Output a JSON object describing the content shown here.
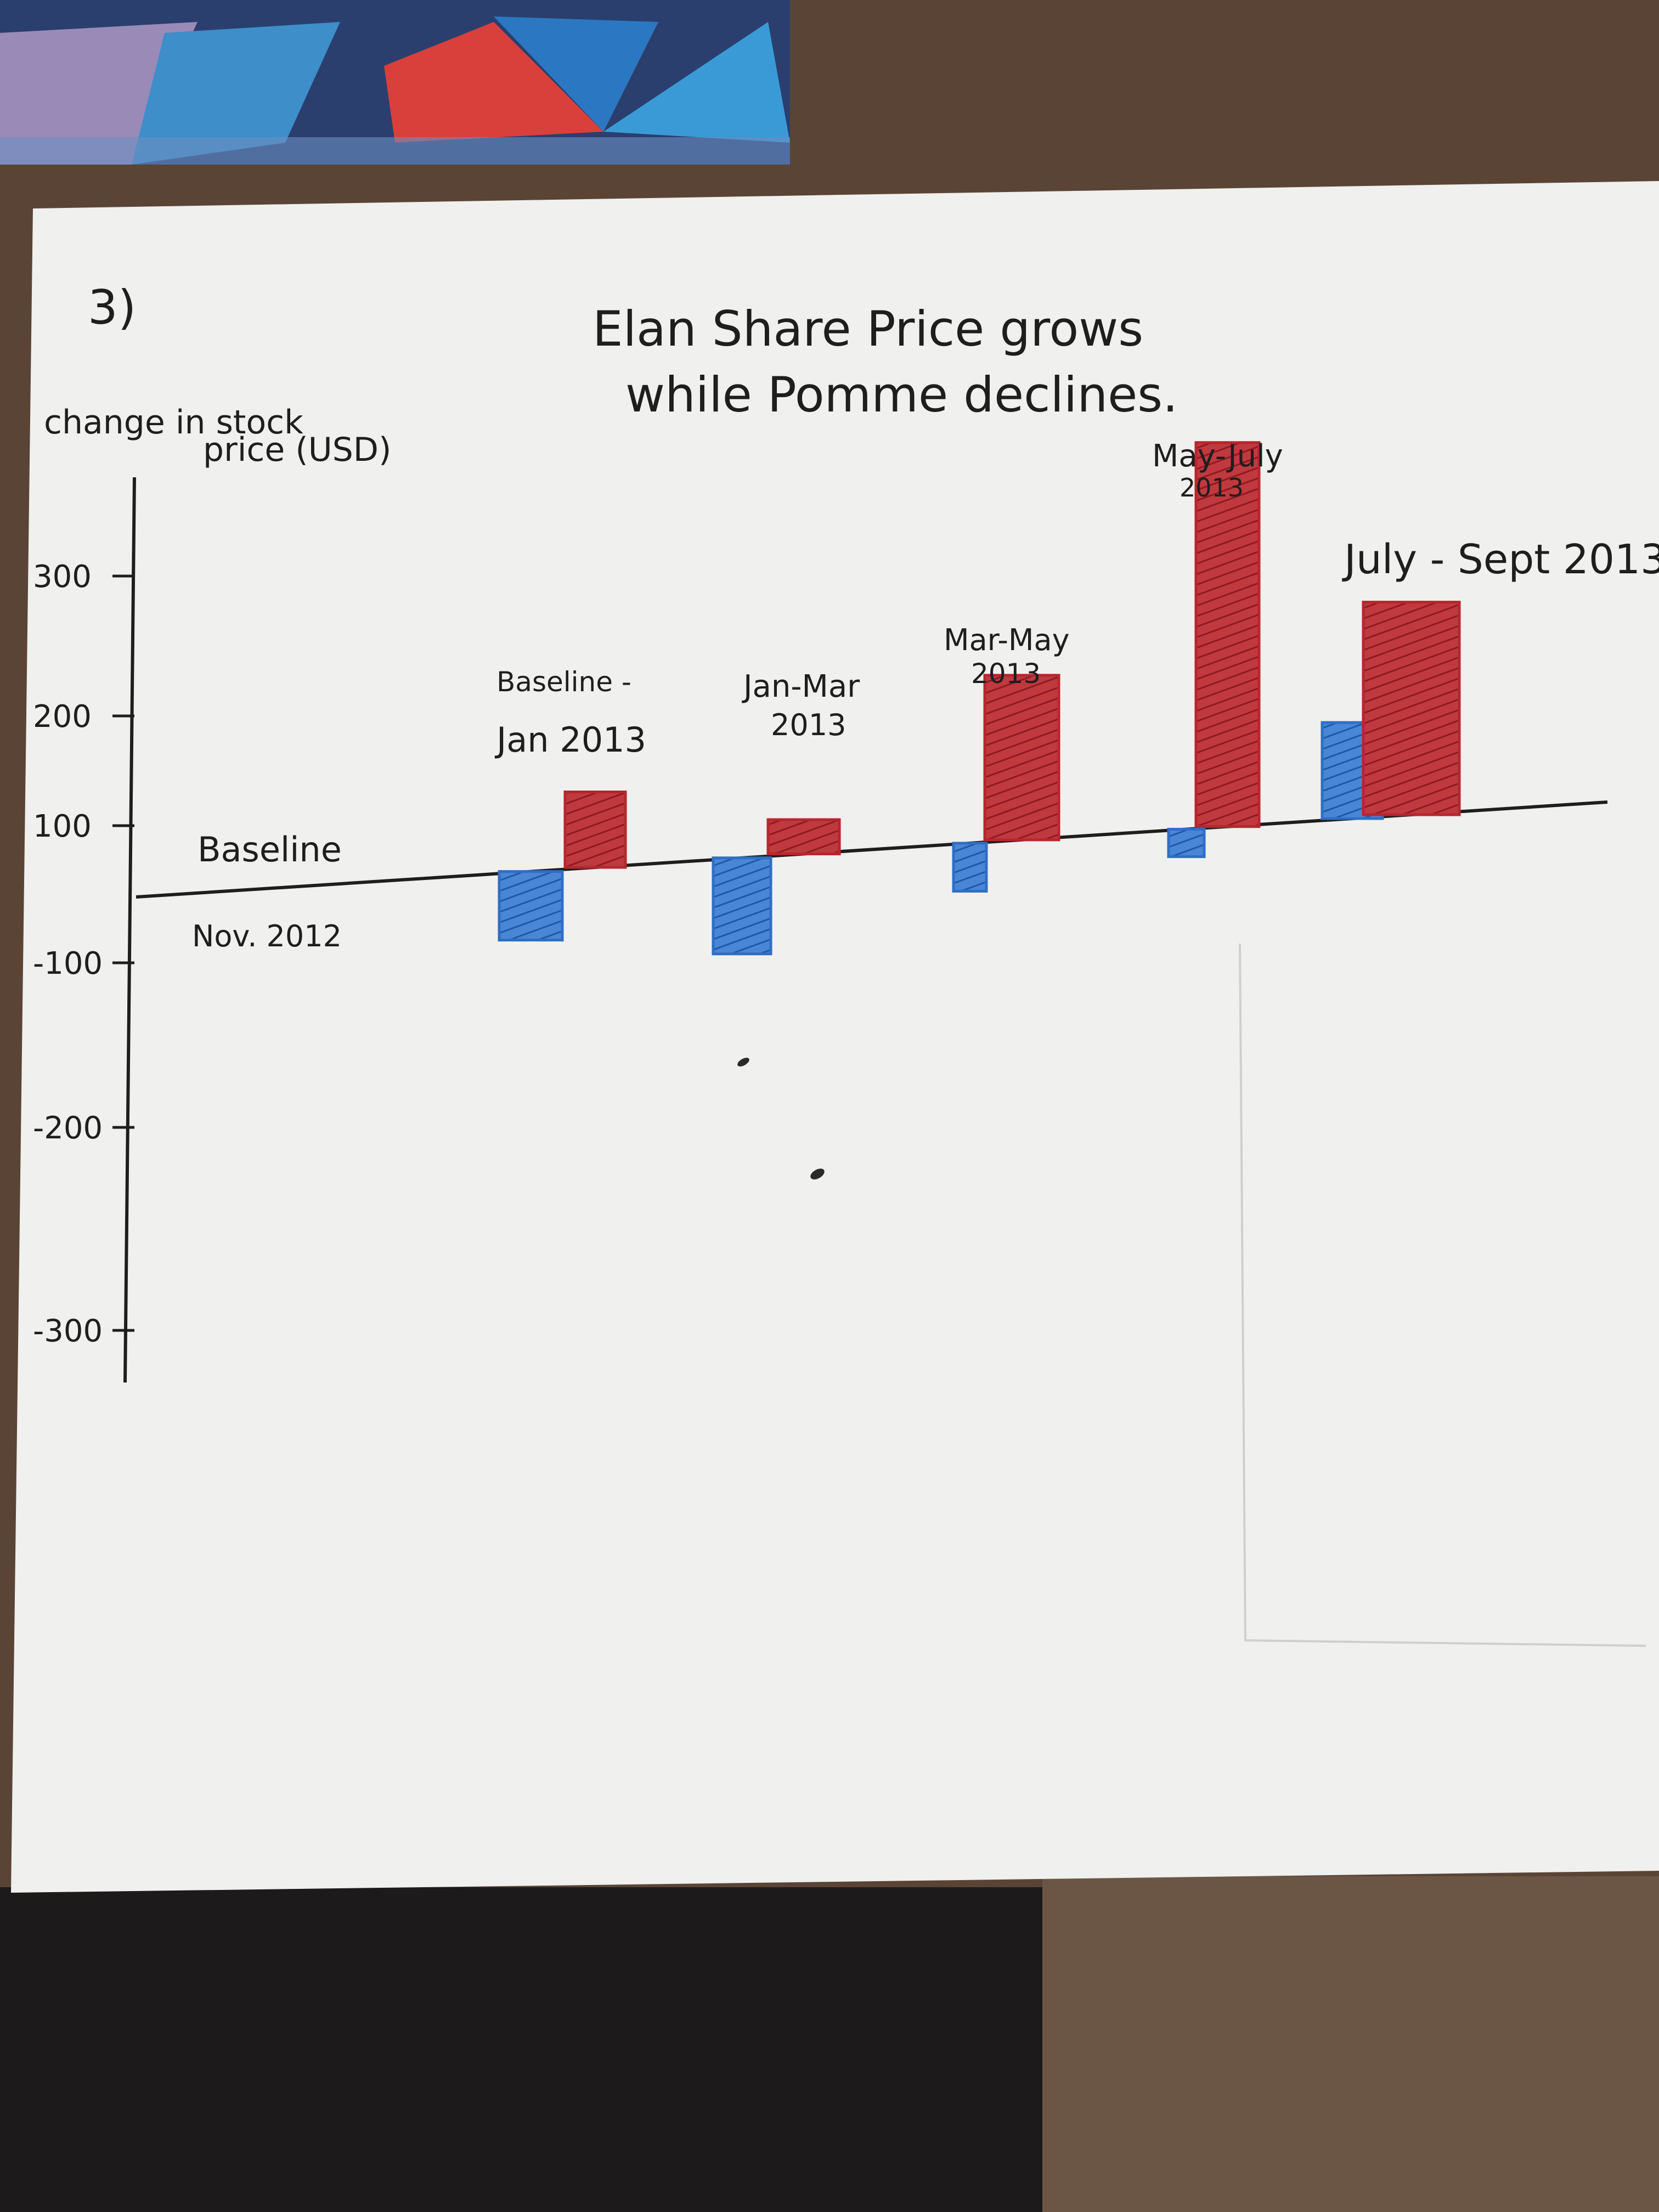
{
  "question_number": "3)",
  "chart_data": {
    "type": "bar",
    "title_lines": [
      "Elan Share Price grows",
      "while Pomme declines."
    ],
    "ylabel_lines": [
      "change in stock",
      "price (USD)"
    ],
    "y_ticks": [
      {
        "value": 300,
        "label": "300"
      },
      {
        "value": 200,
        "label": "200"
      },
      {
        "value": 100,
        "label": "100"
      },
      {
        "value": -100,
        "label": "-100"
      },
      {
        "value": -200,
        "label": "-200"
      },
      {
        "value": -300,
        "label": "-300"
      }
    ],
    "baseline_label": [
      "Baseline",
      "Nov. 2012"
    ],
    "categories": [
      [
        "Baseline -",
        "Jan 2013"
      ],
      [
        "Jan-Mar",
        "2013"
      ],
      [
        "Mar-May",
        "2013"
      ],
      [
        "May-July",
        "2013"
      ],
      [
        "July - Sept 2013"
      ]
    ],
    "series": [
      {
        "color": "#2f6fc4",
        "values": [
          -50,
          -70,
          -35,
          -20,
          70
        ]
      },
      {
        "color": "#b8262d",
        "values": [
          55,
          25,
          120,
          280,
          155
        ]
      }
    ],
    "ylim": [
      -330,
      330
    ],
    "grid": false,
    "legend": "none"
  },
  "colors": {
    "paper": "#f0f0ee",
    "ink": "#1e1e1e",
    "blue": "#2f6fc4",
    "red": "#b8262d",
    "table": "#4a3a30"
  }
}
